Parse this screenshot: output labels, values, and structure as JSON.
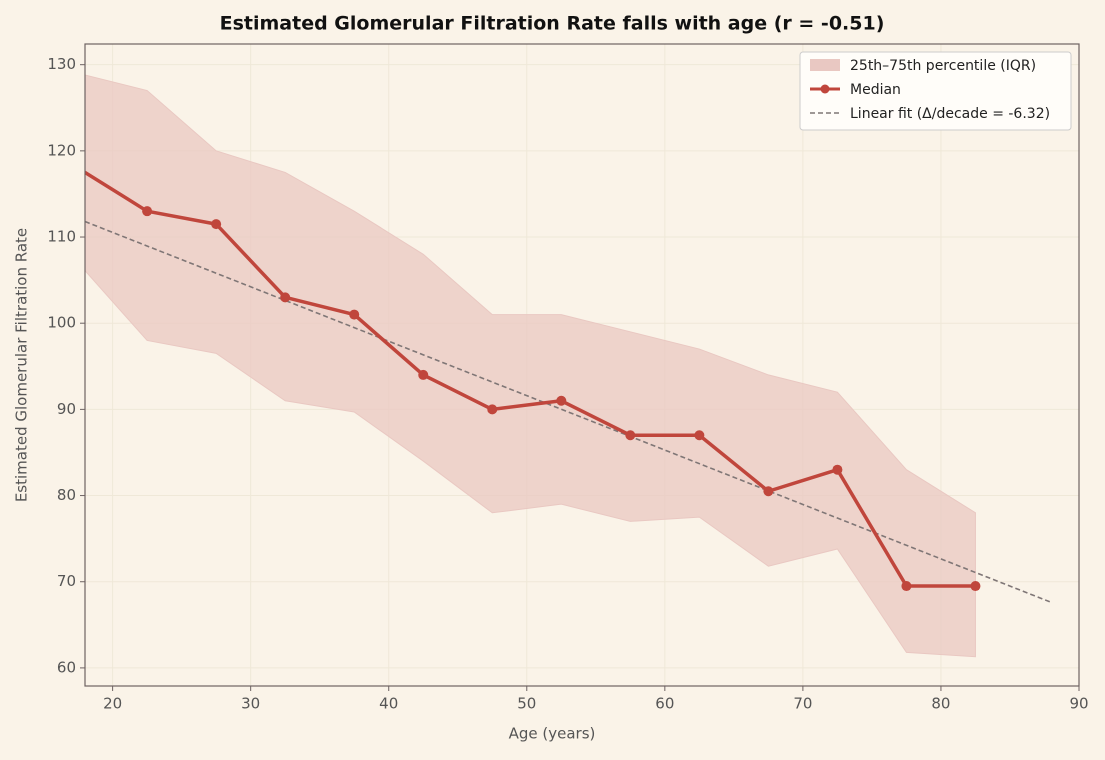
{
  "chart_data": {
    "type": "line",
    "title": "Estimated Glomerular Filtration Rate falls with age (r = -0.51)",
    "x_label": "Age (years)",
    "y_label": "Estimated Glomerular Filtration Rate",
    "x": [
      17.5,
      22.5,
      27.5,
      32.5,
      37.5,
      42.5,
      47.5,
      52.5,
      57.5,
      62.5,
      67.5,
      72.5,
      77.5,
      82.5
    ],
    "band": {
      "name": "25th–75th percentile (IQR)",
      "color": "#e9c8c2",
      "upper": [
        129,
        127,
        120,
        117.5,
        113,
        108,
        101,
        101,
        99,
        97,
        94,
        92,
        83,
        78
      ],
      "lower": [
        107,
        98,
        96.5,
        91,
        89.7,
        84,
        78,
        79,
        77,
        77.5,
        71.8,
        73.8,
        61.8,
        61.3
      ]
    },
    "series": [
      {
        "name": "Median",
        "color": "#c0463c",
        "values": [
          118,
          113,
          111.5,
          103,
          101,
          94,
          90,
          91,
          87,
          87,
          80.5,
          83,
          69.5,
          69.5
        ]
      }
    ],
    "fit": {
      "name": "Linear fit (Δ/decade = -6.32)",
      "color": "#7f7676",
      "x": [
        18,
        88
      ],
      "values": [
        111.8,
        67.6
      ]
    },
    "xlim": [
      18,
      90
    ],
    "ylim": [
      57.9,
      132.4
    ],
    "xticks": [
      20,
      30,
      40,
      50,
      60,
      70,
      80,
      90
    ],
    "yticks": [
      60,
      70,
      80,
      90,
      100,
      110,
      120,
      130
    ],
    "grid": true,
    "legend": "upper right"
  }
}
